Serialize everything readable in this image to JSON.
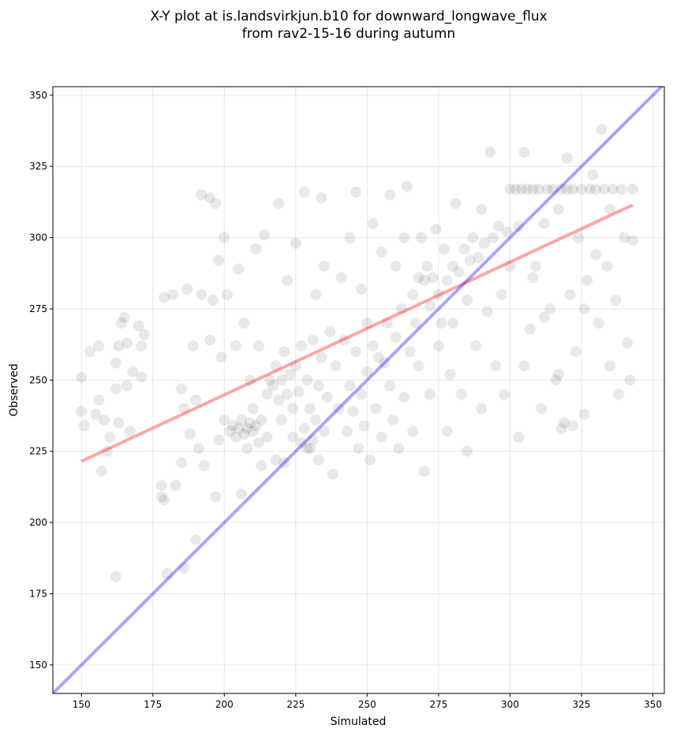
{
  "chart_data": {
    "type": "scatter",
    "title": [
      "X-Y plot at is.landsvirkjun.b10 for downward_longwave_flux",
      "from rav2-15-16 during autumn"
    ],
    "xlabel": "Simulated",
    "ylabel": "Observed",
    "xlim": [
      140,
      354
    ],
    "ylim": [
      140,
      353
    ],
    "xticks": [
      150,
      175,
      200,
      225,
      250,
      275,
      300,
      325,
      350
    ],
    "yticks": [
      150,
      175,
      200,
      225,
      250,
      275,
      300,
      325,
      350
    ],
    "grid": true,
    "colors": {
      "points": "#000000",
      "fit": "#ff0000",
      "identity": "#0000ff"
    },
    "fit_line": {
      "x": [
        150,
        343
      ],
      "y": [
        221.5,
        311.5
      ]
    },
    "identity_line": {
      "x": [
        140,
        354
      ],
      "y": [
        140,
        354
      ]
    },
    "points": [
      [
        150,
        251
      ],
      [
        150,
        239
      ],
      [
        151,
        234
      ],
      [
        153,
        260
      ],
      [
        155,
        238
      ],
      [
        156,
        262
      ],
      [
        156,
        243
      ],
      [
        157,
        218
      ],
      [
        158,
        236
      ],
      [
        159,
        225
      ],
      [
        160,
        230
      ],
      [
        162,
        247
      ],
      [
        162,
        256
      ],
      [
        163,
        262
      ],
      [
        163,
        235
      ],
      [
        164,
        270
      ],
      [
        165,
        272
      ],
      [
        166,
        248
      ],
      [
        166,
        263
      ],
      [
        167,
        232
      ],
      [
        168,
        253
      ],
      [
        170,
        269
      ],
      [
        171,
        262
      ],
      [
        171,
        251
      ],
      [
        172,
        266
      ],
      [
        162,
        181
      ],
      [
        178,
        213
      ],
      [
        178,
        209
      ],
      [
        179,
        208
      ],
      [
        179,
        279
      ],
      [
        180,
        182
      ],
      [
        182,
        280
      ],
      [
        183,
        213
      ],
      [
        185,
        221
      ],
      [
        185,
        247
      ],
      [
        186,
        240
      ],
      [
        186,
        184
      ],
      [
        187,
        282
      ],
      [
        188,
        231
      ],
      [
        189,
        262
      ],
      [
        190,
        194
      ],
      [
        190,
        243
      ],
      [
        191,
        226
      ],
      [
        192,
        280
      ],
      [
        192,
        315
      ],
      [
        193,
        220
      ],
      [
        195,
        314
      ],
      [
        195,
        264
      ],
      [
        196,
        278
      ],
      [
        197,
        312
      ],
      [
        197,
        209
      ],
      [
        198,
        229
      ],
      [
        198,
        292
      ],
      [
        199,
        258
      ],
      [
        200,
        300
      ],
      [
        200,
        236
      ],
      [
        201,
        280
      ],
      [
        202,
        232
      ],
      [
        203,
        234
      ],
      [
        204,
        230
      ],
      [
        204,
        262
      ],
      [
        205,
        233
      ],
      [
        205,
        289
      ],
      [
        206,
        236
      ],
      [
        206,
        210
      ],
      [
        207,
        231
      ],
      [
        207,
        270
      ],
      [
        208,
        233
      ],
      [
        208,
        226
      ],
      [
        209,
        235
      ],
      [
        209,
        250
      ],
      [
        210,
        232
      ],
      [
        210,
        240
      ],
      [
        211,
        234
      ],
      [
        211,
        296
      ],
      [
        212,
        228
      ],
      [
        212,
        262
      ],
      [
        213,
        236
      ],
      [
        213,
        220
      ],
      [
        214,
        301
      ],
      [
        215,
        245
      ],
      [
        215,
        230
      ],
      [
        216,
        250
      ],
      [
        217,
        248
      ],
      [
        218,
        255
      ],
      [
        218,
        222
      ],
      [
        219,
        312
      ],
      [
        219,
        243
      ],
      [
        220,
        250
      ],
      [
        220,
        236
      ],
      [
        221,
        260
      ],
      [
        221,
        221
      ],
      [
        222,
        245
      ],
      [
        222,
        285
      ],
      [
        223,
        252
      ],
      [
        224,
        240
      ],
      [
        224,
        230
      ],
      [
        225,
        255
      ],
      [
        225,
        298
      ],
      [
        226,
        246
      ],
      [
        227,
        228
      ],
      [
        227,
        262
      ],
      [
        228,
        233
      ],
      [
        228,
        316
      ],
      [
        229,
        226
      ],
      [
        229,
        250
      ],
      [
        230,
        240
      ],
      [
        230,
        226
      ],
      [
        231,
        264
      ],
      [
        231,
        229
      ],
      [
        232,
        236
      ],
      [
        232,
        280
      ],
      [
        233,
        248
      ],
      [
        233,
        222
      ],
      [
        234,
        314
      ],
      [
        234,
        258
      ],
      [
        235,
        232
      ],
      [
        235,
        290
      ],
      [
        236,
        244
      ],
      [
        237,
        267
      ],
      [
        238,
        217
      ],
      [
        239,
        255
      ],
      [
        240,
        240
      ],
      [
        241,
        286
      ],
      [
        242,
        264
      ],
      [
        243,
        232
      ],
      [
        244,
        248
      ],
      [
        244,
        300
      ],
      [
        245,
        239
      ],
      [
        246,
        316
      ],
      [
        246,
        260
      ],
      [
        247,
        226
      ],
      [
        248,
        245
      ],
      [
        248,
        282
      ],
      [
        249,
        234
      ],
      [
        250,
        270
      ],
      [
        250,
        253
      ],
      [
        251,
        222
      ],
      [
        252,
        262
      ],
      [
        252,
        305
      ],
      [
        253,
        240
      ],
      [
        254,
        258
      ],
      [
        255,
        295
      ],
      [
        255,
        230
      ],
      [
        256,
        256
      ],
      [
        257,
        270
      ],
      [
        258,
        248
      ],
      [
        258,
        315
      ],
      [
        259,
        236
      ],
      [
        260,
        265
      ],
      [
        260,
        290
      ],
      [
        261,
        226
      ],
      [
        262,
        275
      ],
      [
        263,
        300
      ],
      [
        263,
        244
      ],
      [
        264,
        318
      ],
      [
        265,
        260
      ],
      [
        266,
        280
      ],
      [
        266,
        232
      ],
      [
        267,
        270
      ],
      [
        268,
        286
      ],
      [
        268,
        255
      ],
      [
        269,
        300
      ],
      [
        270,
        285
      ],
      [
        270,
        218
      ],
      [
        271,
        290
      ],
      [
        272,
        276
      ],
      [
        272,
        245
      ],
      [
        273,
        286
      ],
      [
        274,
        303
      ],
      [
        275,
        280
      ],
      [
        275,
        262
      ],
      [
        276,
        270
      ],
      [
        277,
        296
      ],
      [
        278,
        285
      ],
      [
        278,
        232
      ],
      [
        279,
        252
      ],
      [
        280,
        290
      ],
      [
        280,
        270
      ],
      [
        281,
        312
      ],
      [
        282,
        288
      ],
      [
        283,
        245
      ],
      [
        284,
        296
      ],
      [
        285,
        278
      ],
      [
        285,
        225
      ],
      [
        286,
        292
      ],
      [
        287,
        300
      ],
      [
        288,
        262
      ],
      [
        289,
        293
      ],
      [
        290,
        240
      ],
      [
        290,
        310
      ],
      [
        291,
        298
      ],
      [
        292,
        274
      ],
      [
        293,
        330
      ],
      [
        294,
        300
      ],
      [
        295,
        255
      ],
      [
        296,
        304
      ],
      [
        297,
        280
      ],
      [
        298,
        245
      ],
      [
        299,
        302
      ],
      [
        300,
        290
      ],
      [
        300,
        317
      ],
      [
        302,
        317
      ],
      [
        303,
        304
      ],
      [
        304,
        317
      ],
      [
        305,
        255
      ],
      [
        305,
        330
      ],
      [
        306,
        317
      ],
      [
        307,
        268
      ],
      [
        308,
        317
      ],
      [
        309,
        290
      ],
      [
        310,
        317
      ],
      [
        311,
        240
      ],
      [
        312,
        305
      ],
      [
        313,
        317
      ],
      [
        314,
        275
      ],
      [
        315,
        317
      ],
      [
        316,
        250
      ],
      [
        317,
        310
      ],
      [
        318,
        317
      ],
      [
        319,
        235
      ],
      [
        320,
        328
      ],
      [
        320,
        317
      ],
      [
        321,
        280
      ],
      [
        322,
        317
      ],
      [
        323,
        260
      ],
      [
        324,
        300
      ],
      [
        325,
        317
      ],
      [
        326,
        238
      ],
      [
        327,
        285
      ],
      [
        328,
        317
      ],
      [
        329,
        322
      ],
      [
        330,
        317
      ],
      [
        331,
        270
      ],
      [
        332,
        338
      ],
      [
        333,
        317
      ],
      [
        334,
        290
      ],
      [
        335,
        255
      ],
      [
        336,
        317
      ],
      [
        337,
        278
      ],
      [
        338,
        245
      ],
      [
        339,
        317
      ],
      [
        340,
        300
      ],
      [
        341,
        263
      ],
      [
        342,
        250
      ],
      [
        343,
        317
      ],
      [
        343,
        299
      ],
      [
        322,
        234
      ],
      [
        318,
        233
      ],
      [
        312,
        272
      ],
      [
        326,
        275
      ],
      [
        335,
        310
      ],
      [
        330,
        294
      ],
      [
        308,
        286
      ],
      [
        303,
        230
      ],
      [
        317,
        252
      ]
    ]
  }
}
